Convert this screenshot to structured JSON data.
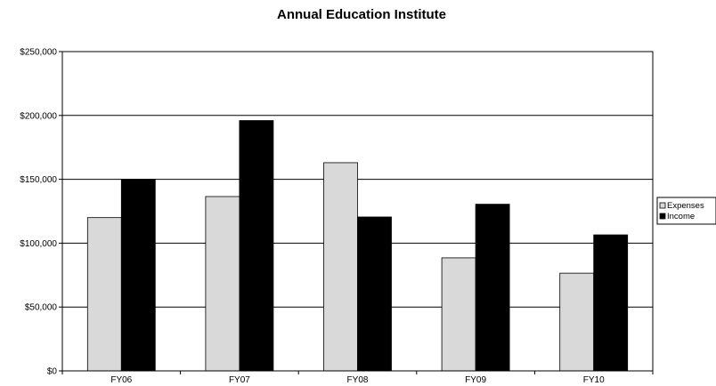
{
  "chart_data": {
    "type": "bar",
    "title": "Annual Education Institute",
    "xlabel": "",
    "ylabel": "",
    "categories": [
      "FY06",
      "FY07",
      "FY08",
      "FY09",
      "FY10"
    ],
    "series": [
      {
        "name": "Expenses",
        "values": [
          120000,
          136500,
          163000,
          88500,
          76500
        ],
        "color": "#d9d9d9"
      },
      {
        "name": "Income",
        "values": [
          150000,
          196000,
          120500,
          130500,
          106500
        ],
        "color": "#000000"
      }
    ],
    "ylim": [
      0,
      250000
    ],
    "yticks": [
      0,
      50000,
      100000,
      150000,
      200000,
      250000
    ],
    "ytick_labels": [
      "$0",
      "$50,000",
      "$100,000",
      "$150,000",
      "$200,000",
      "$250,000"
    ],
    "grid": true,
    "legend_position": "right"
  }
}
